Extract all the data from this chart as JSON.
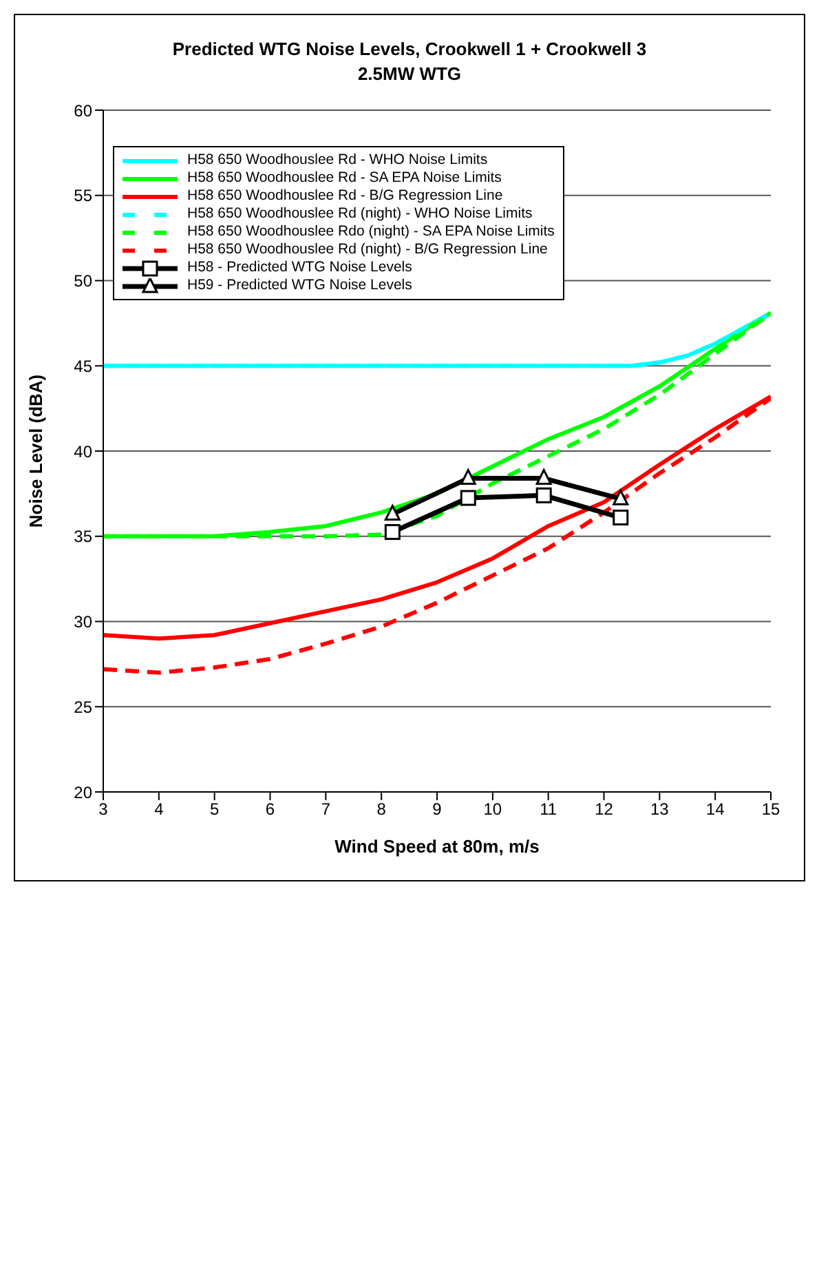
{
  "chart_data": {
    "type": "line",
    "title": "Predicted WTG Noise Levels, Crookwell 1 + Crookwell 3",
    "subtitle": "2.5MW WTG",
    "xlabel": "Wind Speed at 80m, m/s",
    "ylabel": "Noise Level (dBA)",
    "xlim": [
      3,
      15
    ],
    "xticks": [
      3,
      4,
      5,
      6,
      7,
      8,
      9,
      10,
      11,
      12,
      13,
      14,
      15
    ],
    "ylim": [
      20,
      60
    ],
    "yticks": [
      20,
      25,
      30,
      35,
      40,
      45,
      50,
      55,
      60
    ],
    "grid": "y",
    "legend": "top left",
    "series": [
      {
        "name": "H58 650 Woodhouslee Rd - WHO Noise Limits",
        "color": "#00ffff",
        "line_style": "solid",
        "marker": "none",
        "x": [
          3,
          4,
          5,
          6,
          7,
          8,
          9,
          10,
          11,
          12,
          12.5,
          13,
          13.5,
          14,
          15
        ],
        "values": [
          45,
          45,
          45,
          45,
          45,
          45,
          45,
          45,
          45,
          45,
          45,
          45.2,
          45.6,
          46.3,
          48.1
        ]
      },
      {
        "name": "H58 650 Woodhouslee Rd - SA EPA Noise Limits",
        "color": "#00ff00",
        "line_style": "solid",
        "marker": "none",
        "x": [
          3,
          4,
          5,
          6,
          7,
          8,
          9,
          10,
          11,
          12,
          13,
          14,
          15
        ],
        "values": [
          35,
          35,
          35,
          35.25,
          35.6,
          36.4,
          37.5,
          39.1,
          40.7,
          42,
          43.8,
          46,
          48.1
        ]
      },
      {
        "name": "H58 650 Woodhouslee Rd - B/G Regression Line",
        "color": "#ff0000",
        "line_style": "solid",
        "marker": "none",
        "x": [
          3,
          4,
          5,
          6,
          7,
          8,
          9,
          10,
          11,
          12,
          13,
          14,
          15
        ],
        "values": [
          29.2,
          29,
          29.2,
          29.9,
          30.6,
          31.3,
          32.3,
          33.7,
          35.6,
          37,
          39.2,
          41.3,
          43.2
        ]
      },
      {
        "name": "H58 650 Woodhouslee Rd (night) - WHO Noise Limits",
        "color": "#00ffff",
        "line_style": "dashed",
        "marker": "none",
        "x": [
          3,
          4,
          5,
          6,
          7,
          8,
          9,
          10,
          11,
          12,
          12.5,
          13,
          13.5,
          14,
          15
        ],
        "values": [
          45,
          45,
          45,
          45,
          45,
          45,
          45,
          45,
          45,
          45,
          45,
          45.2,
          45.6,
          46.3,
          48.1
        ]
      },
      {
        "name": "H58 650 Woodhouslee Rdo (night) - SA EPA Noise Limits",
        "color": "#00ff00",
        "line_style": "dashed",
        "marker": "none",
        "x": [
          3,
          4,
          5,
          6,
          7,
          8,
          9,
          10,
          11,
          12,
          13,
          14,
          15
        ],
        "values": [
          35,
          35,
          35,
          35,
          35,
          35.1,
          36.2,
          38.1,
          39.7,
          41.3,
          43.3,
          45.7,
          48.1
        ]
      },
      {
        "name": "H58 650 Woodhouslee Rd (night) - B/G Regression Line",
        "color": "#ff0000",
        "line_style": "dashed",
        "marker": "none",
        "x": [
          3,
          4,
          5,
          6,
          7,
          8,
          9,
          10,
          11,
          12,
          13,
          14,
          15
        ],
        "values": [
          27.2,
          27,
          27.3,
          27.8,
          28.7,
          29.7,
          31.1,
          32.7,
          34.3,
          36.4,
          38.7,
          40.8,
          43.1
        ]
      },
      {
        "name": "H58 - Predicted WTG Noise Levels",
        "color": "#000000",
        "line_style": "solid",
        "marker": "square",
        "x": [
          8.2,
          9.56,
          10.92,
          12.3
        ],
        "values": [
          35.25,
          37.25,
          37.4,
          36.1
        ]
      },
      {
        "name": "H59 - Predicted WTG Noise Levels",
        "color": "#000000",
        "line_style": "solid",
        "marker": "triangle",
        "x": [
          8.2,
          9.56,
          10.92,
          12.3
        ],
        "values": [
          36.3,
          38.4,
          38.4,
          37.2
        ]
      }
    ]
  }
}
